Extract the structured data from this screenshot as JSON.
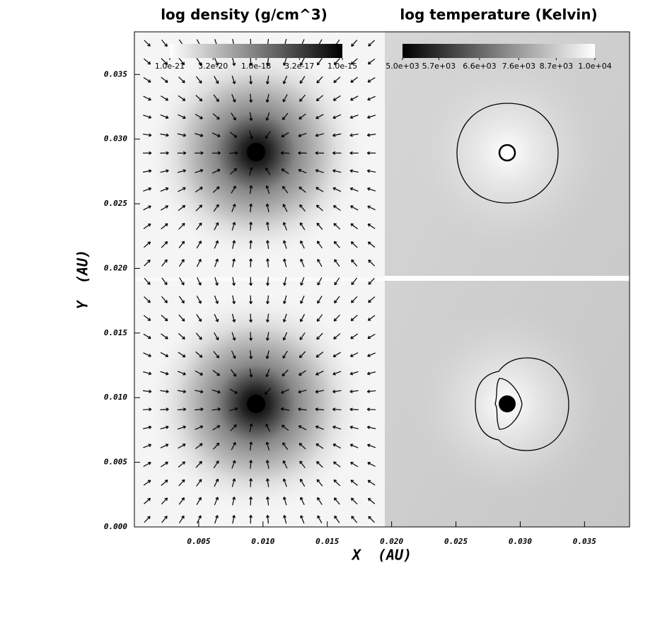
{
  "chart_data": {
    "type": "image",
    "panel_titles": [
      "log density (g/cm^3)",
      "log temperature (Kelvin)"
    ],
    "x_label": "X  (AU)",
    "y_label": "Y  (AU)",
    "xlim": [
      0,
      0.0385
    ],
    "xticks": [
      0.005,
      {
        "value": 0.01,
        "label": "0.010"
      },
      0.015,
      {
        "value": 0.02,
        "label": "0.020"
      },
      0.025,
      {
        "value": 0.03,
        "label": "0.030"
      },
      0.035
    ],
    "ylim": [
      0,
      0.0383
    ],
    "yticks": [
      {
        "value": 0,
        "label": "0.000"
      },
      0.005,
      {
        "value": 0.01,
        "label": "0.010"
      },
      0.015,
      {
        "value": 0.02,
        "label": "0.020"
      },
      0.025,
      {
        "value": 0.03,
        "label": "0.030"
      },
      0.035
    ],
    "colorbars": [
      {
        "log": true,
        "colors": [
          "#ffffff",
          "#000000"
        ],
        "lim": [
          1e-21,
          1e-15
        ],
        "ticks": [
          {
            "value": 1e-21,
            "label": "1.0e-21"
          },
          {
            "value": 3.2e-20,
            "label": "3.2e-20"
          },
          {
            "value": 1e-18,
            "label": "1.0e-18"
          },
          {
            "value": 3.2e-17,
            "label": "3.2e-17"
          },
          {
            "value": 1e-15,
            "label": "1.0e-15"
          }
        ]
      },
      {
        "log": true,
        "colors": [
          "#000000",
          "#ffffff"
        ],
        "lim": [
          5000,
          10000
        ],
        "ticks": [
          {
            "value": 5000,
            "label": "5.0e+03"
          },
          {
            "value": 5700,
            "label": "5.7e+03"
          },
          {
            "value": 6600,
            "label": "6.6e+03"
          },
          {
            "value": 7600,
            "label": "7.6e+03"
          },
          {
            "value": 8700,
            "label": "8.7e+03"
          },
          {
            "value": 10000,
            "label": "1.0e+04"
          }
        ]
      }
    ]
  }
}
